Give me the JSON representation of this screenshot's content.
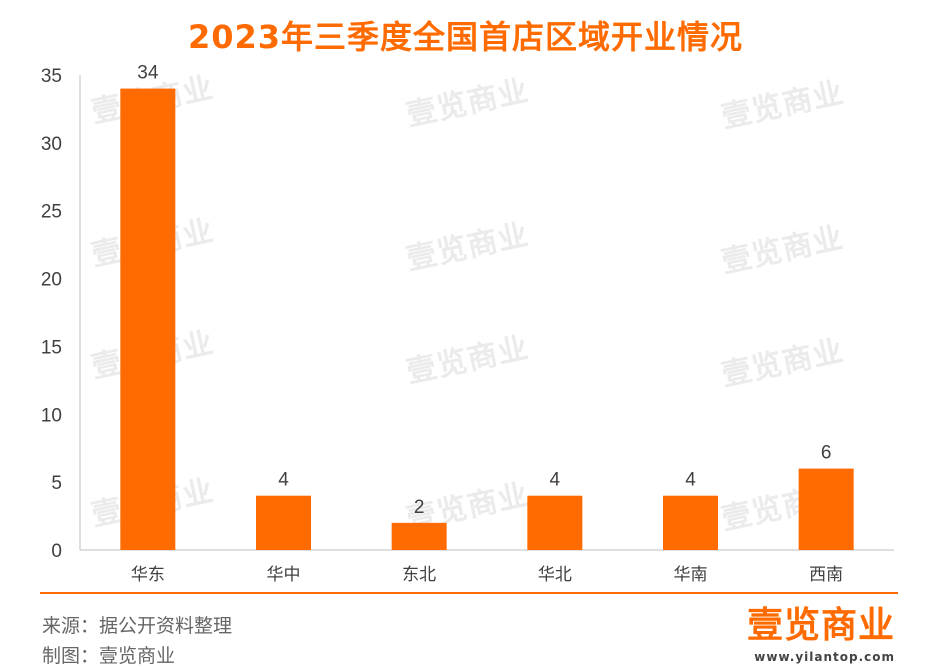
{
  "colors": {
    "accent": "#FF6B00",
    "axis": "#BFBFBF",
    "text": "#404040"
  },
  "chart_data": {
    "type": "bar",
    "title": "2023年三季度全国首店区域开业情况",
    "categories": [
      "华东",
      "华中",
      "东北",
      "华北",
      "华南",
      "西南"
    ],
    "values": [
      34,
      4,
      2,
      4,
      4,
      6
    ],
    "ylim": [
      0,
      35
    ],
    "yticks": [
      "0",
      "5",
      "10",
      "15",
      "20",
      "25",
      "30",
      "35"
    ],
    "xlabel": "",
    "ylabel": "",
    "grid": false,
    "legend": "none"
  },
  "watermark": "壹览商业",
  "footer": {
    "source": "来源：据公开资料整理",
    "credit": "制图：壹览商业",
    "logo_text": "壹览商业",
    "url": "www.yilantop.com"
  }
}
